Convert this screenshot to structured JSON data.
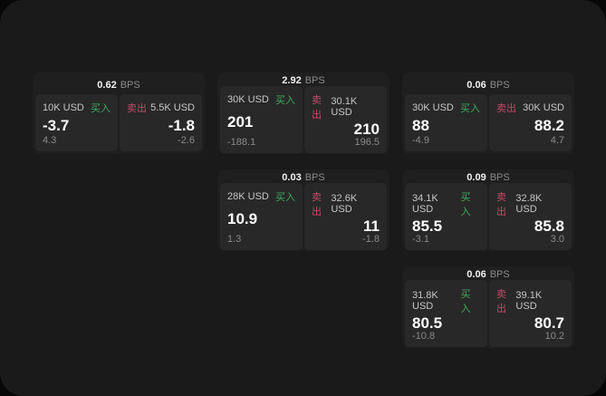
{
  "labels": {
    "bps_unit": "BPS",
    "buy": "买入",
    "sell": "卖出"
  },
  "colors": {
    "buy_green": "#3fa860",
    "sell_red": "#c34a66",
    "window_bg": "#1a1a1a",
    "card_bg": "#1f1f1f",
    "panel_bg": "#282828"
  },
  "cards": [
    {
      "bps": "0.62",
      "buy": {
        "size": "10K USD",
        "value": "-3.7",
        "sub": "4.3"
      },
      "sell": {
        "size": "5.5K USD",
        "value": "-1.8",
        "sub": "-2.6"
      }
    },
    {
      "bps": "2.92",
      "buy": {
        "size": "30K USD",
        "value": "201",
        "sub": "-188.1"
      },
      "sell": {
        "size": "30.1K USD",
        "value": "210",
        "sub": "196.5"
      }
    },
    {
      "bps": "0.06",
      "buy": {
        "size": "30K USD",
        "value": "88",
        "sub": "-4.9"
      },
      "sell": {
        "size": "30K USD",
        "value": "88.2",
        "sub": "4.7"
      }
    },
    {
      "bps": "0.03",
      "buy": {
        "size": "28K USD",
        "value": "10.9",
        "sub": "1.3"
      },
      "sell": {
        "size": "32.6K USD",
        "value": "11",
        "sub": "-1.8"
      }
    },
    {
      "bps": "0.09",
      "buy": {
        "size": "34.1K USD",
        "value": "85.5",
        "sub": "-3.1"
      },
      "sell": {
        "size": "32.8K USD",
        "value": "85.8",
        "sub": "3.0"
      }
    },
    {
      "bps": "0.06",
      "buy": {
        "size": "31.8K USD",
        "value": "80.5",
        "sub": "-10.8"
      },
      "sell": {
        "size": "39.1K USD",
        "value": "80.7",
        "sub": "10.2"
      }
    }
  ]
}
